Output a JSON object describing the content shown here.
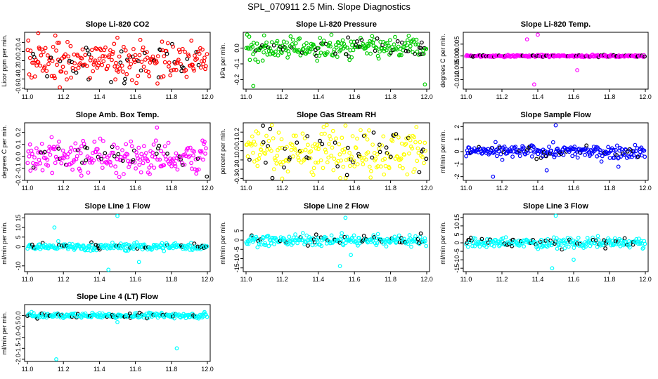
{
  "figure": {
    "title": "SPL_070911  2.5 Min. Slope Diagnostics"
  },
  "chart_data": [
    {
      "type": "scatter",
      "title": "Slope Li-820 CO2",
      "ylabel": "Licor ppm per min.",
      "color": "#ff0000",
      "xlim": [
        11.0,
        12.0
      ],
      "xticks": [
        "11.0",
        "11.2",
        "11.4",
        "11.6",
        "11.8",
        "12.0"
      ],
      "ylim": [
        -0.62,
        0.62
      ],
      "yticks": [
        "-0.6",
        "-0.4",
        "-0.2",
        "0.0",
        "0.2",
        "0.4"
      ],
      "spread": 0.22,
      "outliers": [
        [
          11.06,
          0.6
        ],
        [
          11.18,
          -0.58
        ],
        [
          11.5,
          0.5
        ]
      ],
      "black_fraction": 0.15
    },
    {
      "type": "scatter",
      "title": "Slope Li-820 Pressure",
      "ylabel": "kPa per min.",
      "color": "#00cc00",
      "xlim": [
        11.0,
        12.0
      ],
      "xticks": [
        "11.0",
        "11.2",
        "11.4",
        "11.6",
        "11.8",
        "12.0"
      ],
      "ylim": [
        -0.26,
        0.1
      ],
      "yticks": [
        "-0.2",
        "-0.1",
        "0.0"
      ],
      "spread": 0.035,
      "outliers": [
        [
          11.04,
          -0.24
        ],
        [
          11.1,
          0.08
        ],
        [
          11.99,
          -0.23
        ]
      ],
      "black_fraction": 0.15
    },
    {
      "type": "scatter",
      "title": "Slope Li-820 Temp.",
      "ylabel": "degrees C per min.",
      "color": "#ff00ff",
      "xlim": [
        11.0,
        12.0
      ],
      "xticks": [
        "11.0",
        "11.2",
        "11.4",
        "11.6",
        "11.8",
        "12.0"
      ],
      "ylim": [
        -0.014,
        0.01
      ],
      "yticks": [
        "-0.010",
        "-0.005",
        "0.000",
        "0.005"
      ],
      "spread": 0.0002,
      "outliers": [
        [
          11.38,
          -0.012
        ],
        [
          11.4,
          0.009
        ],
        [
          11.62,
          -0.006
        ],
        [
          11.34,
          0.007
        ]
      ],
      "black_fraction": 0.15
    },
    {
      "type": "scatter",
      "title": "Slope Amb. Box Temp.",
      "ylabel": "degrees C per min.",
      "color": "#ff00ff",
      "xlim": [
        11.0,
        12.0
      ],
      "xticks": [
        "11.0",
        "11.2",
        "11.4",
        "11.6",
        "11.8",
        "12.0"
      ],
      "ylim": [
        -0.2,
        0.28
      ],
      "yticks": [
        "-0.2",
        "-0.1",
        "0.0",
        "0.1",
        "0.2"
      ],
      "spread": 0.07,
      "outliers": [
        [
          11.72,
          0.24
        ],
        [
          11.3,
          -0.16
        ]
      ],
      "black_fraction": 0.15
    },
    {
      "type": "scatter",
      "title": "Slope Gas Stream RH",
      "ylabel": "percent per min.",
      "color": "#ffff00",
      "xlim": [
        11.0,
        12.0
      ],
      "xticks": [
        "11.0",
        "11.2",
        "11.4",
        "11.6",
        "11.8",
        "12.0"
      ],
      "ylim": [
        -0.32,
        0.3
      ],
      "yticks": [
        "-0.3",
        "-0.2",
        "-0.1",
        "0.0",
        "0.1",
        "0.2"
      ],
      "spread": 0.13,
      "outliers": [
        [
          11.55,
          0.27
        ],
        [
          11.2,
          -0.3
        ]
      ],
      "black_fraction": 0.15
    },
    {
      "type": "scatter",
      "title": "Slope Sample Flow",
      "ylabel": "ml/min per min.",
      "color": "#0000ff",
      "xlim": [
        11.0,
        12.0
      ],
      "xticks": [
        "11.0",
        "11.2",
        "11.4",
        "11.6",
        "11.8",
        "12.0"
      ],
      "ylim": [
        -2.3,
        2.3
      ],
      "yticks": [
        "-2",
        "-1",
        "0",
        "1",
        "2"
      ],
      "spread": 0.25,
      "outliers": [
        [
          11.5,
          2.1
        ],
        [
          11.15,
          -2.0
        ],
        [
          11.45,
          -1.5
        ],
        [
          11.85,
          -1.2
        ]
      ],
      "black_fraction": 0.15
    },
    {
      "type": "scatter",
      "title": "Slope Line 1 Flow",
      "ylabel": "ml/min per min.",
      "color": "#00ffff",
      "xlim": [
        11.0,
        12.0
      ],
      "xticks": [
        "11.0",
        "11.2",
        "11.4",
        "11.6",
        "11.8",
        "12.0"
      ],
      "ylim": [
        -13,
        17
      ],
      "yticks": [
        "-10",
        "0",
        "5",
        "10",
        "15"
      ],
      "spread": 1.0,
      "outliers": [
        [
          11.15,
          10
        ],
        [
          11.5,
          16
        ],
        [
          11.45,
          -12
        ],
        [
          11.62,
          -8
        ]
      ],
      "black_fraction": 0.15
    },
    {
      "type": "scatter",
      "title": "Slope Line 2 Flow",
      "ylabel": "ml/min per min.",
      "color": "#00ffff",
      "xlim": [
        11.0,
        12.0
      ],
      "xticks": [
        "11.0",
        "11.2",
        "11.4",
        "11.6",
        "11.8",
        "12.0"
      ],
      "ylim": [
        -17,
        14
      ],
      "yticks": [
        "-15",
        "-10",
        "-5",
        "0",
        "5"
      ],
      "spread": 1.5,
      "outliers": [
        [
          11.55,
          12
        ],
        [
          11.52,
          -14
        ],
        [
          11.58,
          -8
        ]
      ],
      "black_fraction": 0.15
    },
    {
      "type": "scatter",
      "title": "Slope Line 3 Flow",
      "ylabel": "ml/min per min.",
      "color": "#00ffff",
      "xlim": [
        11.0,
        12.0
      ],
      "xticks": [
        "11.0",
        "11.2",
        "11.4",
        "11.6",
        "11.8",
        "12.0"
      ],
      "ylim": [
        -17,
        17
      ],
      "yticks": [
        "-15",
        "-10",
        "-5",
        "0",
        "5",
        "10",
        "15"
      ],
      "spread": 1.5,
      "outliers": [
        [
          11.5,
          16
        ],
        [
          11.48,
          -15
        ],
        [
          11.6,
          -10
        ]
      ],
      "black_fraction": 0.15
    },
    {
      "type": "scatter",
      "title": "Slope Line 4 (LT) Flow",
      "ylabel": "ml/min per min.",
      "color": "#00ffff",
      "xlim": [
        11.0,
        12.0
      ],
      "xticks": [
        "11.0",
        "11.2",
        "11.4",
        "11.6",
        "11.8",
        "12.0"
      ],
      "ylim": [
        -2.1,
        0.5
      ],
      "yticks": [
        "-2.0",
        "-1.5",
        "-1.0",
        "-0.5",
        "0.0"
      ],
      "spread": 0.06,
      "outliers": [
        [
          11.16,
          -2.0
        ],
        [
          11.83,
          -1.5
        ],
        [
          11.5,
          -0.3
        ]
      ],
      "black_fraction": 0.15
    }
  ]
}
